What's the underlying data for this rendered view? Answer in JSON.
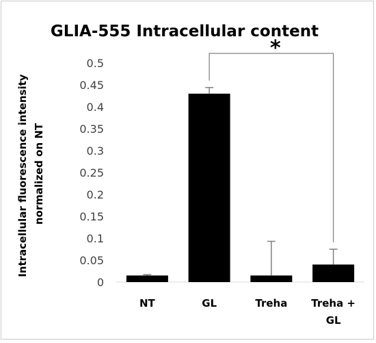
{
  "chart_data": {
    "type": "bar",
    "title": "GLIA-555 Intracellular content",
    "ylabel_line1": "Intracellular fluorescence intensity",
    "ylabel_line2": "normalized on NT",
    "xlabel": "",
    "categories": [
      {
        "line1": "NT",
        "line2": ""
      },
      {
        "line1": "GL",
        "line2": ""
      },
      {
        "line1": "Treha",
        "line2": ""
      },
      {
        "line1": "Treha +",
        "line2": "GL"
      }
    ],
    "values": [
      0.015,
      0.43,
      0.015,
      0.04
    ],
    "error_plus": [
      0.002,
      0.014,
      0.078,
      0.035
    ],
    "ylim": [
      0,
      0.5
    ],
    "ytick_step": 0.05,
    "yticks": [
      "0",
      "0.05",
      "0.1",
      "0.15",
      "0.2",
      "0.25",
      "0.3",
      "0.35",
      "0.4",
      "0.45",
      "0.5"
    ],
    "grid": false,
    "bar_color": "#000000",
    "error_bar_color": "#7f7f7f",
    "bracket_color": "#7f7f7f",
    "significance": {
      "from": 1,
      "to": 3,
      "label": "*"
    }
  }
}
